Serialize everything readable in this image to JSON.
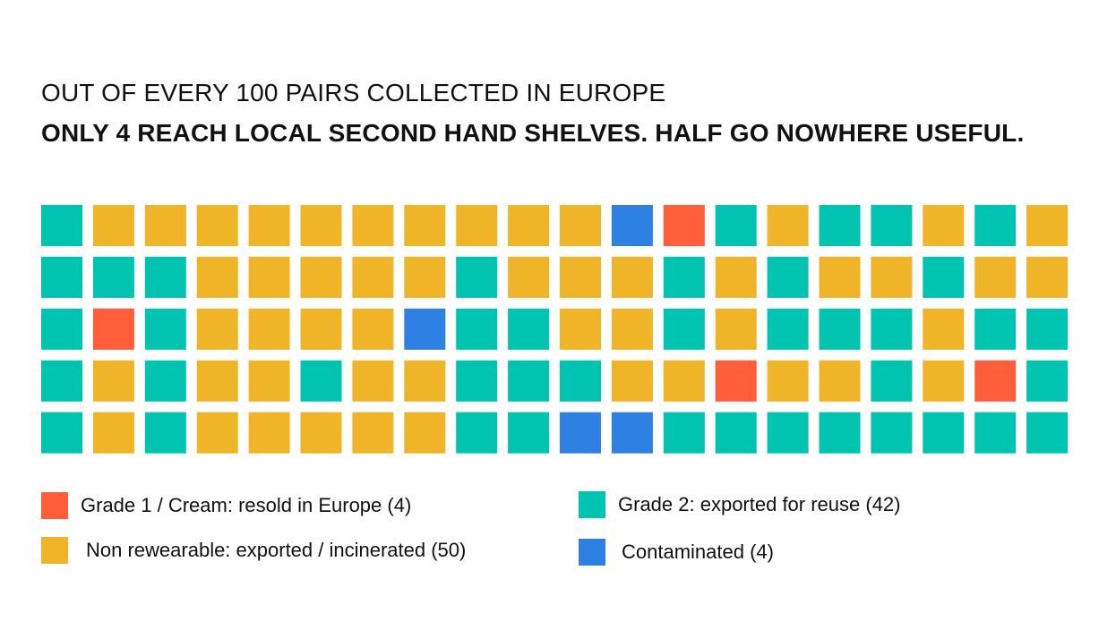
{
  "title": {
    "line1": "OUT OF EVERY 100 PAIRS COLLECTED IN EUROPE",
    "line2": "ONLY 4 REACH LOCAL SECOND HAND SHELVES. HALF GO NOWHERE USEFUL."
  },
  "colors": {
    "cream": "#FF5E3A",
    "reuse": "#00C4B0",
    "nonwear": "#F0B429",
    "contaminated": "#2F80E3"
  },
  "chart_data": {
    "type": "waffle",
    "title": "OUT OF EVERY 100 PAIRS COLLECTED IN EUROPE",
    "subtitle": "ONLY 4 REACH LOCAL SECOND HAND SHELVES. HALF GO NOWHERE USEFUL.",
    "total": 100,
    "rows": 5,
    "columns": 20,
    "categories": [
      {
        "key": "cream",
        "label": "Grade 1 / Cream: resold in Europe (4)",
        "value": 4
      },
      {
        "key": "reuse",
        "label": "Grade 2: exported for reuse (42)",
        "value": 42
      },
      {
        "key": "nonwear",
        "label": "Non rewearable: exported / incinerated (50)",
        "value": 50
      },
      {
        "key": "contaminated",
        "label": "Contaminated (4)",
        "value": 4
      }
    ],
    "grid": [
      [
        "reuse",
        "nonwear",
        "nonwear",
        "nonwear",
        "nonwear",
        "nonwear",
        "nonwear",
        "nonwear",
        "nonwear",
        "nonwear",
        "nonwear",
        "contaminated",
        "cream",
        "reuse",
        "nonwear",
        "reuse",
        "reuse",
        "nonwear",
        "reuse",
        "nonwear"
      ],
      [
        "reuse",
        "reuse",
        "reuse",
        "nonwear",
        "nonwear",
        "nonwear",
        "nonwear",
        "nonwear",
        "reuse",
        "nonwear",
        "nonwear",
        "nonwear",
        "reuse",
        "nonwear",
        "reuse",
        "nonwear",
        "nonwear",
        "reuse",
        "nonwear",
        "nonwear"
      ],
      [
        "reuse",
        "cream",
        "reuse",
        "nonwear",
        "nonwear",
        "nonwear",
        "nonwear",
        "contaminated",
        "reuse",
        "reuse",
        "nonwear",
        "nonwear",
        "reuse",
        "nonwear",
        "reuse",
        "reuse",
        "reuse",
        "nonwear",
        "reuse",
        "reuse"
      ],
      [
        "reuse",
        "nonwear",
        "reuse",
        "nonwear",
        "nonwear",
        "reuse",
        "nonwear",
        "nonwear",
        "reuse",
        "reuse",
        "reuse",
        "nonwear",
        "nonwear",
        "cream",
        "nonwear",
        "nonwear",
        "reuse",
        "nonwear",
        "cream",
        "reuse"
      ],
      [
        "reuse",
        "nonwear",
        "reuse",
        "nonwear",
        "nonwear",
        "nonwear",
        "nonwear",
        "nonwear",
        "reuse",
        "reuse",
        "contaminated",
        "contaminated",
        "reuse",
        "reuse",
        "reuse",
        "reuse",
        "reuse",
        "reuse",
        "reuse",
        "reuse"
      ]
    ]
  },
  "legend": [
    {
      "key": "cream",
      "label": "Grade 1 / Cream: resold in Europe (4)"
    },
    {
      "key": "reuse",
      "label": "Grade 2: exported for reuse (42)"
    },
    {
      "key": "nonwear",
      "label": "Non rewearable: exported / incinerated (50)"
    },
    {
      "key": "contaminated",
      "label": "Contaminated (4)"
    }
  ]
}
